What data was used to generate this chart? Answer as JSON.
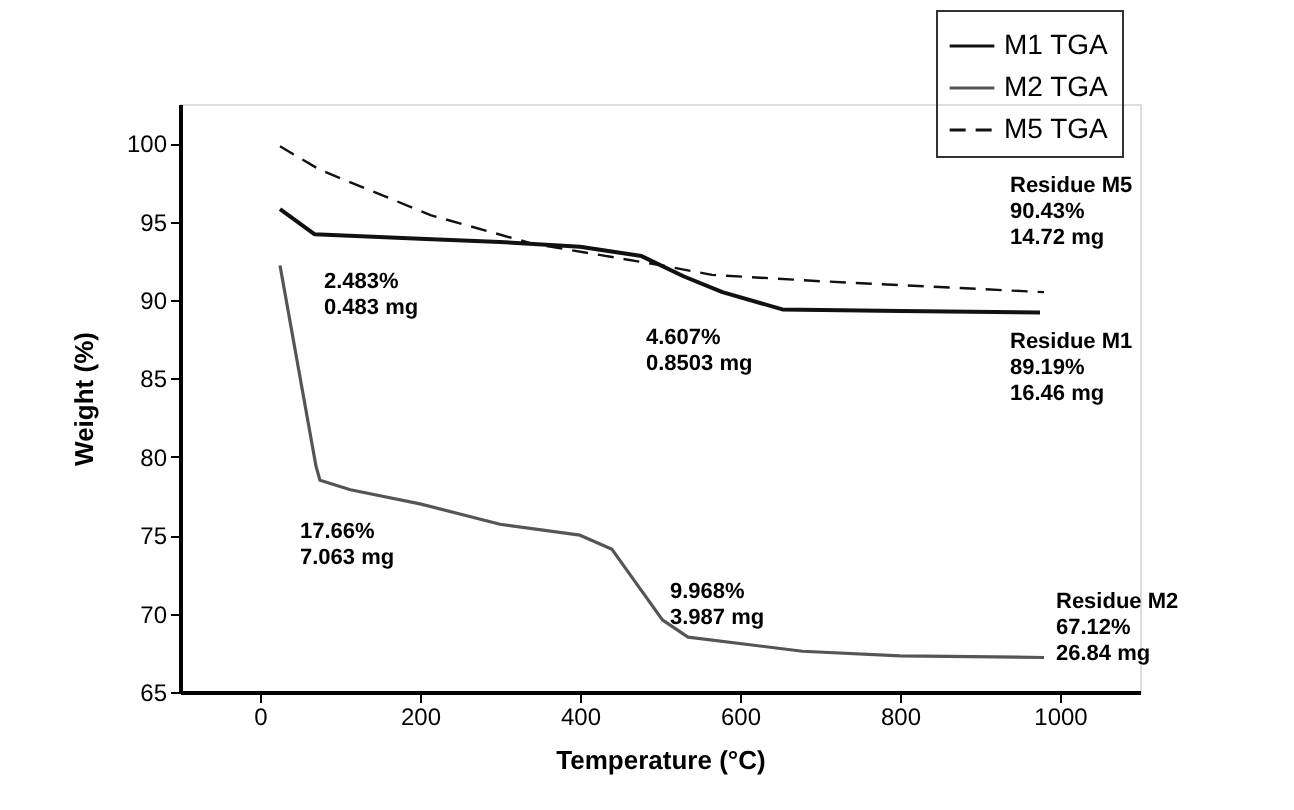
{
  "chart_data": {
    "type": "line",
    "xlabel": "Temperature (°C)",
    "ylabel": "Weight (%)",
    "xlim": [
      -100,
      1100
    ],
    "xticks": [
      0,
      200,
      400,
      600,
      800,
      {
        "value": 1000,
        "label": "1000"
      }
    ],
    "ylim": [
      65,
      102.5
    ],
    "yticks": [
      65,
      70,
      75,
      80,
      85,
      90,
      95,
      100
    ],
    "grid": false,
    "legend": "top right",
    "marker": "none",
    "series": [
      {
        "name": "M1 TGA",
        "color": "#111111",
        "line_style": "solid",
        "x": [
          25,
          68,
          200,
          300,
          400,
          477,
          530,
          578,
          653,
          800,
          975
        ],
        "values": [
          95.8,
          94.2,
          93.9,
          93.7,
          93.4,
          92.8,
          91.5,
          90.5,
          89.4,
          89.3,
          89.2
        ]
      },
      {
        "name": "M2 TGA",
        "color": "#555555",
        "line_style": "solid",
        "x": [
          25,
          70,
          75,
          113,
          200,
          300,
          400,
          440,
          503,
          535,
          678,
          800,
          980
        ],
        "values": [
          92.2,
          79.4,
          78.5,
          77.9,
          77.0,
          75.7,
          75.0,
          74.1,
          69.6,
          68.5,
          67.6,
          67.3,
          67.2
        ]
      },
      {
        "name": "M5 TGA",
        "color": "#111111",
        "line_style": "dashed",
        "x": [
          25,
          75,
          214,
          340,
          503,
          565,
          700,
          980
        ],
        "values": [
          99.8,
          98.3,
          95.4,
          93.6,
          92.2,
          91.6,
          91.2,
          90.5
        ]
      }
    ],
    "annotations": [
      "2.483%\n0.483 mg",
      "4.607%\n0.8503 mg",
      "Residue M5\n90.43%\n14.72 mg",
      "Residue M1\n89.19%\n16.46 mg",
      "17.66%\n7.063 mg",
      "9.968%\n3.987 mg",
      "Residue M2\n67.12%\n26.84 mg"
    ]
  }
}
